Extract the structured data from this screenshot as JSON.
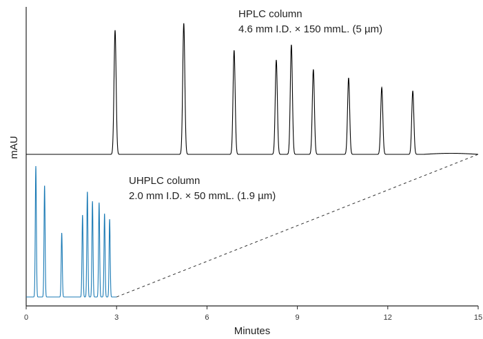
{
  "chart_data": {
    "type": "line",
    "xlabel": "Minutes",
    "ylabel": "mAU",
    "xlim": [
      0,
      15
    ],
    "xticks": [
      0,
      3,
      6,
      9,
      12,
      15
    ],
    "grid": false,
    "series": [
      {
        "name": "HPLC column",
        "subtitle": "4.6 mm I.D. × 150 mmL. (5 µm)",
        "color": "#000000",
        "baseline": 0,
        "peaks": [
          {
            "x": 2.95,
            "y": 180
          },
          {
            "x": 5.23,
            "y": 190
          },
          {
            "x": 6.9,
            "y": 151
          },
          {
            "x": 8.3,
            "y": 137
          },
          {
            "x": 8.8,
            "y": 159
          },
          {
            "x": 9.53,
            "y": 123
          },
          {
            "x": 10.7,
            "y": 111
          },
          {
            "x": 11.8,
            "y": 97
          },
          {
            "x": 12.83,
            "y": 92
          }
        ]
      },
      {
        "name": "UHPLC column",
        "subtitle": "2.0 mm I.D. × 50 mmL. (1.9 µm)",
        "color": "#1a7ab5",
        "baseline": 0,
        "peaks": [
          {
            "x": 0.32,
            "y": 190
          },
          {
            "x": 0.61,
            "y": 162
          },
          {
            "x": 1.18,
            "y": 93
          },
          {
            "x": 1.87,
            "y": 119
          },
          {
            "x": 2.03,
            "y": 153
          },
          {
            "x": 2.2,
            "y": 139
          },
          {
            "x": 2.42,
            "y": 137
          },
          {
            "x": 2.6,
            "y": 121
          },
          {
            "x": 2.77,
            "y": 113
          }
        ]
      }
    ],
    "annotations": [
      {
        "type": "dashed-line",
        "from": [
          3.0,
          "UHPLC baseline"
        ],
        "to": [
          15.0,
          "HPLC baseline"
        ]
      }
    ]
  }
}
